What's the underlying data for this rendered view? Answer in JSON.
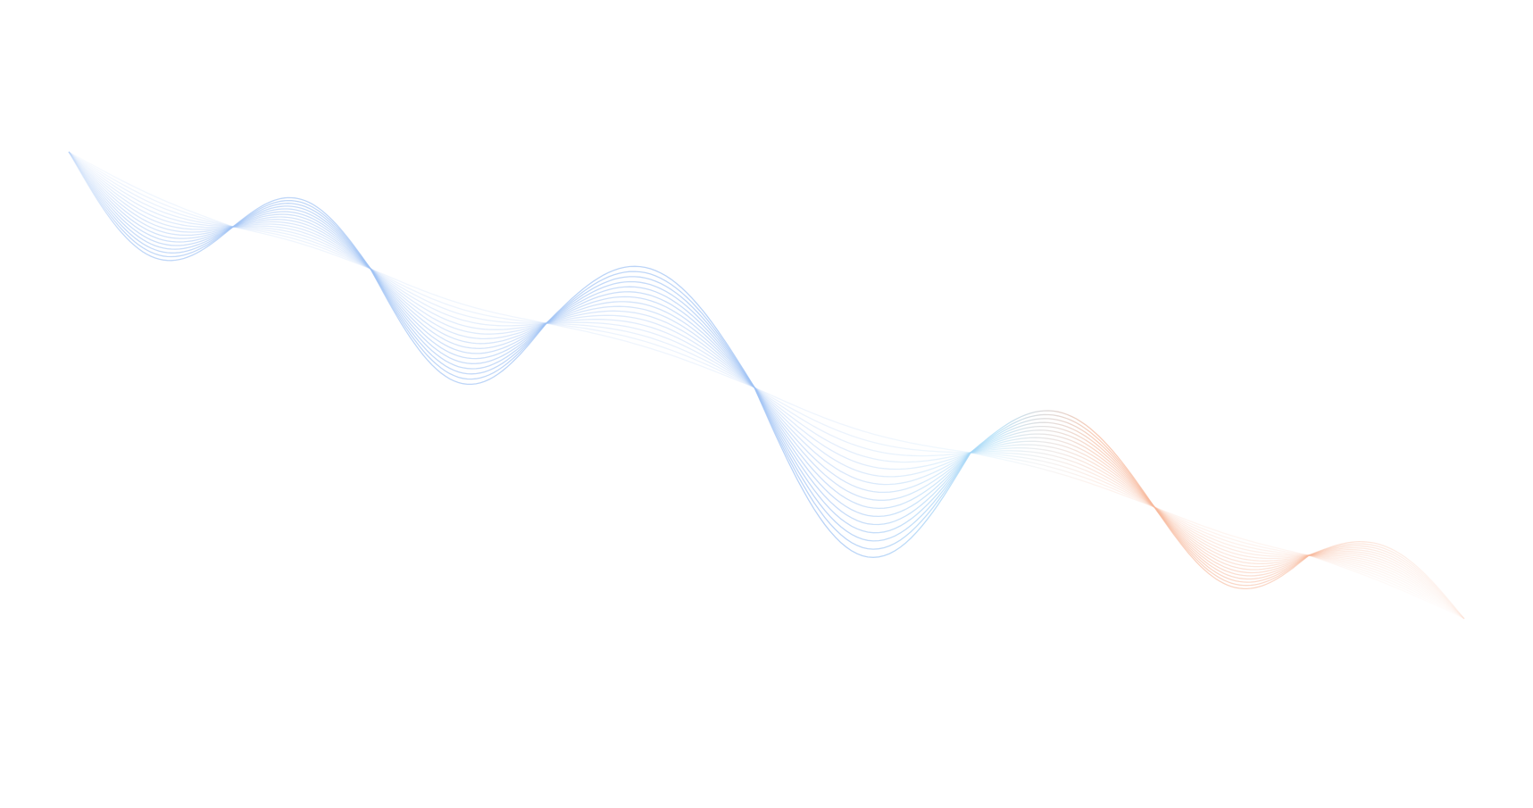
{
  "background": {
    "color": "#ffffff",
    "wave": {
      "colors": {
        "start": "#9fc2f4",
        "middle": "#a9dcf7",
        "end": "#f7b89b"
      },
      "line_count": 16
    }
  }
}
